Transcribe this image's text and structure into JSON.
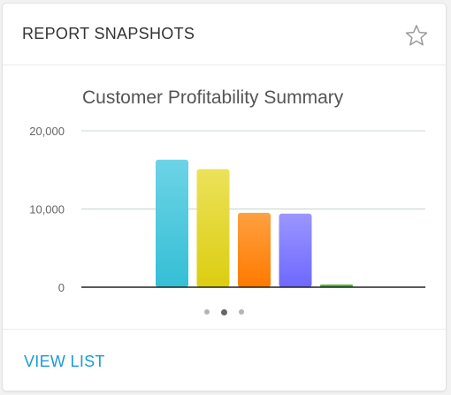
{
  "card": {
    "title": "REPORT SNAPSHOTS",
    "favorite_icon": "star-outline-icon",
    "footer_link": "VIEW LIST"
  },
  "colors": {
    "accent_link": "#1a9bd7",
    "axis_line": "#222222",
    "grid_line": "#c8d4c8"
  },
  "pager": {
    "pages": 3,
    "active_index": 1
  },
  "chart_data": {
    "type": "bar",
    "title": "Customer Profitability Summary",
    "xlabel": "",
    "ylabel": "",
    "ylim": [
      0,
      20000
    ],
    "yticks": [
      0,
      10000,
      20000
    ],
    "ytick_labels": [
      "0",
      "10,000",
      "20,000"
    ],
    "grid": true,
    "legend": "none",
    "categories": [
      "",
      "",
      "",
      "",
      ""
    ],
    "values": [
      16300,
      15100,
      9500,
      9400,
      350
    ],
    "colors": [
      [
        "#6dd3e6",
        "#35bfd6"
      ],
      [
        "#ece25a",
        "#dccd10"
      ],
      [
        "#ffa040",
        "#ff7a00"
      ],
      [
        "#9b96ff",
        "#6e68ff"
      ],
      [
        "#62c44a",
        "#3a9e2a"
      ]
    ]
  }
}
